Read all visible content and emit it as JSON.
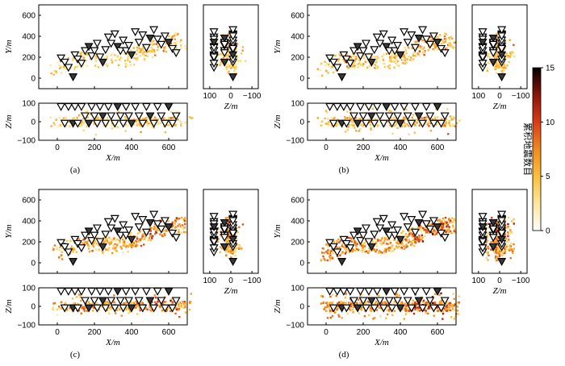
{
  "chart_data": {
    "type": "scatter",
    "panel_captions": [
      "(a)",
      "(b)",
      "(c)",
      "(d)"
    ],
    "views": {
      "plan": {
        "xlabel": "X/m",
        "ylabel": "Y/m",
        "xlim": [
          -100,
          700
        ],
        "ylim": [
          -100,
          700
        ],
        "xticks": [
          "0",
          "200",
          "400",
          "600"
        ],
        "yticks": [
          "0",
          "200",
          "400",
          "600"
        ]
      },
      "section_xz": {
        "xlabel": "X/m",
        "ylabel": "Z/m",
        "xlim": [
          -100,
          700
        ],
        "ylim": [
          -100,
          100
        ],
        "xticks": [
          "0",
          "200",
          "400",
          "600"
        ],
        "yticks": [
          "100",
          "0",
          "−100"
        ]
      },
      "section_zy": {
        "xlabel": "Z/m",
        "xlim": [
          130,
          -130
        ],
        "ylim": [
          -100,
          700
        ],
        "xticks": [
          "100",
          "0",
          "−100"
        ]
      }
    },
    "stations": [
      {
        "x": 20,
        "y": 190,
        "z": 80
      },
      {
        "x": 40,
        "y": 150,
        "z": -10
      },
      {
        "x": 60,
        "y": 100,
        "z": 80
      },
      {
        "x": 85,
        "y": 10,
        "z": -10
      },
      {
        "x": 95,
        "y": 220,
        "z": 80
      },
      {
        "x": 110,
        "y": 180,
        "z": -10
      },
      {
        "x": 130,
        "y": 140,
        "z": 80
      },
      {
        "x": 150,
        "y": 260,
        "z": 30
      },
      {
        "x": 170,
        "y": 300,
        "z": -10
      },
      {
        "x": 185,
        "y": 210,
        "z": 80
      },
      {
        "x": 200,
        "y": 260,
        "z": 30
      },
      {
        "x": 215,
        "y": 330,
        "z": -10
      },
      {
        "x": 230,
        "y": 200,
        "z": 80
      },
      {
        "x": 245,
        "y": 150,
        "z": 30
      },
      {
        "x": 260,
        "y": 270,
        "z": -10
      },
      {
        "x": 275,
        "y": 390,
        "z": 80
      },
      {
        "x": 290,
        "y": 330,
        "z": 30
      },
      {
        "x": 310,
        "y": 420,
        "z": -10
      },
      {
        "x": 325,
        "y": 300,
        "z": 80
      },
      {
        "x": 340,
        "y": 260,
        "z": 30
      },
      {
        "x": 355,
        "y": 360,
        "z": -10
      },
      {
        "x": 370,
        "y": 260,
        "z": 80
      },
      {
        "x": 385,
        "y": 310,
        "z": 30
      },
      {
        "x": 400,
        "y": 220,
        "z": -10
      },
      {
        "x": 420,
        "y": 440,
        "z": 80
      },
      {
        "x": 440,
        "y": 340,
        "z": 30
      },
      {
        "x": 460,
        "y": 410,
        "z": -10
      },
      {
        "x": 480,
        "y": 290,
        "z": 80
      },
      {
        "x": 500,
        "y": 380,
        "z": 30
      },
      {
        "x": 520,
        "y": 460,
        "z": -10
      },
      {
        "x": 540,
        "y": 370,
        "z": 80
      },
      {
        "x": 560,
        "y": 320,
        "z": 30
      },
      {
        "x": 580,
        "y": 400,
        "z": -10
      },
      {
        "x": 600,
        "y": 340,
        "z": 80
      },
      {
        "x": 620,
        "y": 280,
        "z": -10
      },
      {
        "x": 640,
        "y": 240,
        "z": 30
      }
    ],
    "panels": [
      {
        "caption": "(a)",
        "seed": 11,
        "count": 220,
        "intensity": 0.9
      },
      {
        "caption": "(b)",
        "seed": 23,
        "count": 300,
        "intensity": 1.05
      },
      {
        "caption": "(c)",
        "seed": 37,
        "count": 400,
        "intensity": 1.25
      },
      {
        "caption": "(d)",
        "seed": 53,
        "count": 480,
        "intensity": 1.4
      }
    ],
    "colorbar": {
      "label": "累积地震数目",
      "ticks": [
        "0",
        "5",
        "10",
        "15"
      ],
      "range": [
        0,
        15
      ],
      "colormap": [
        "#ffffff",
        "#fde79a",
        "#fbbf3b",
        "#f08a1f",
        "#d93b17",
        "#8a1508",
        "#000000"
      ]
    },
    "station_marker": {
      "shape": "inverted-triangle",
      "fill": "#ffffff",
      "stroke": "#000000"
    }
  }
}
